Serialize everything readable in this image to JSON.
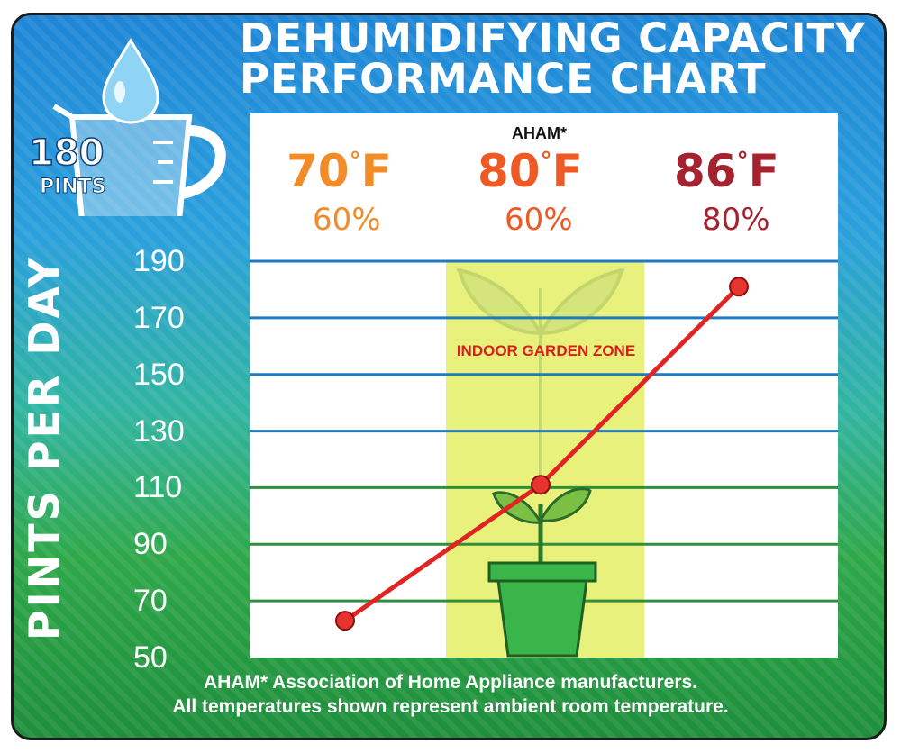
{
  "title_lines": [
    "DEHUMIDIFYING CAPACITY",
    "PERFORMANCE CHART"
  ],
  "badge": {
    "number": "180",
    "unit": "PINTS"
  },
  "aham_marker": "AHAM*",
  "conditions": [
    {
      "temp": "70",
      "unit": "F",
      "humidity": "60%",
      "color": "#f28c28"
    },
    {
      "temp": "80",
      "unit": "F",
      "humidity": "60%",
      "color": "#ef5a24"
    },
    {
      "temp": "86",
      "unit": "F",
      "humidity": "80%",
      "color": "#a5232f"
    }
  ],
  "zone_label": "INDOOR GARDEN ZONE",
  "footnote": [
    "AHAM* Association of Home Appliance manufacturers.",
    "All temperatures shown represent ambient room temperature."
  ],
  "colors": {
    "line": "#e02424",
    "marker": "#e8342e",
    "zone": "#e8f06a",
    "gridline": "#1f7ac4",
    "pot": "#3ab54a"
  },
  "chart_data": {
    "type": "line",
    "x": [
      "70° F / 60%",
      "80° F / 60%",
      "86° F / 80%"
    ],
    "series": [
      {
        "values": [
          63,
          111,
          181
        ]
      }
    ],
    "ylabel": "PINTS PER DAY",
    "yticks": [
      50,
      70,
      90,
      110,
      130,
      150,
      170,
      190
    ],
    "ylim": [
      50,
      190
    ],
    "grid": true
  }
}
